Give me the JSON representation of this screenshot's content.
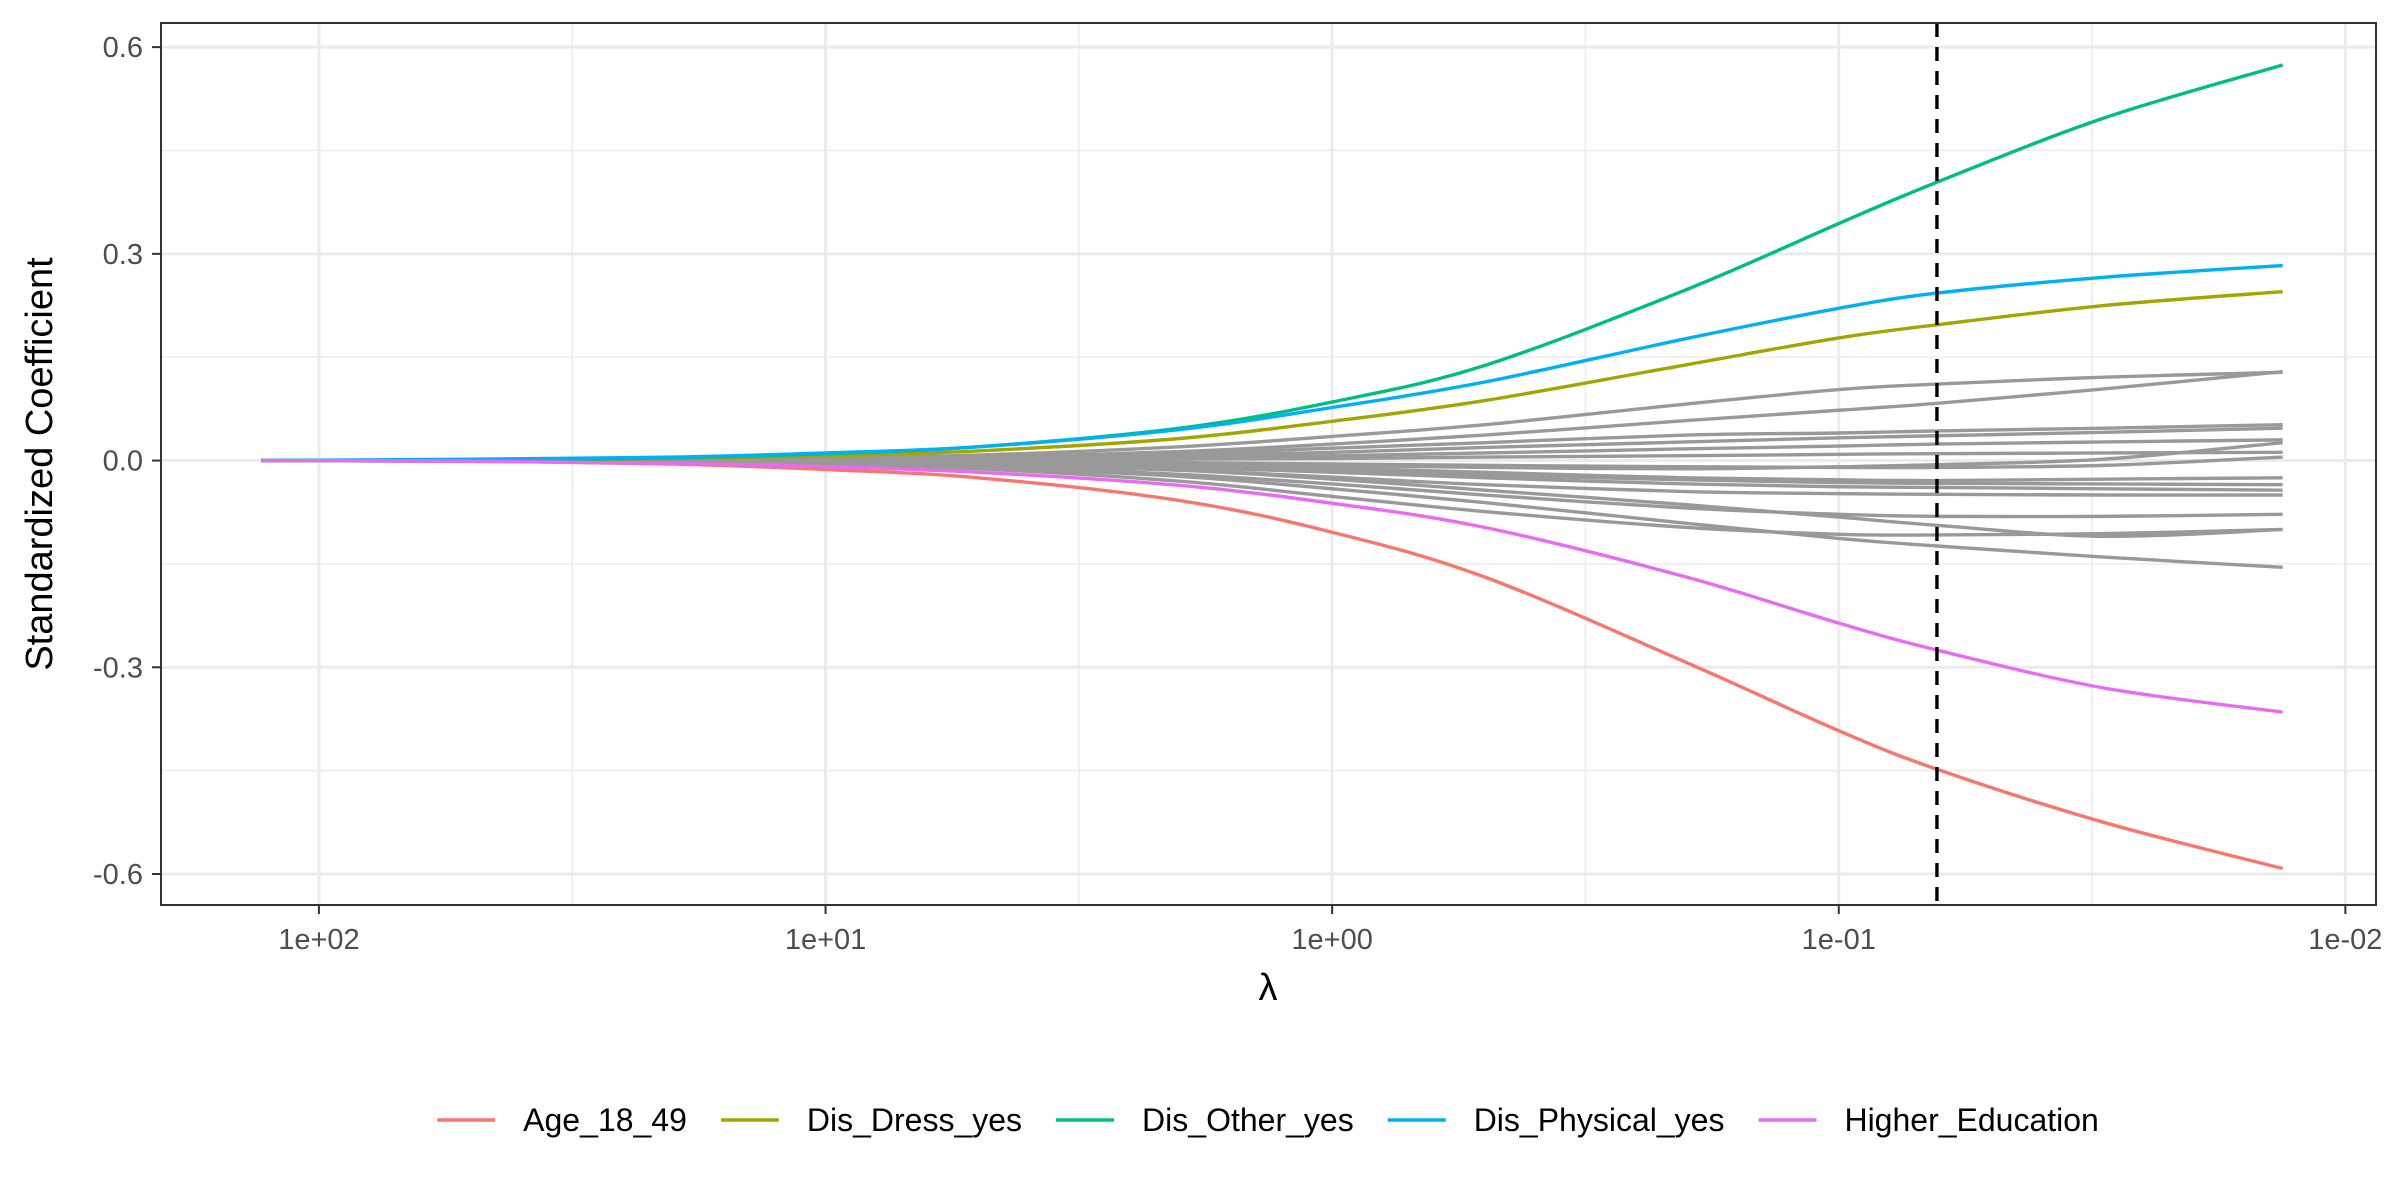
{
  "chart_data": {
    "type": "line",
    "xlabel": "λ",
    "ylabel": "Standardized Coefficient",
    "x_scale": "log10-reversed",
    "xlim": [
      205,
      0.0087
    ],
    "ylim": [
      -0.645,
      0.635
    ],
    "x_ticks": [
      {
        "value": 100,
        "label": "1e+02"
      },
      {
        "value": 10,
        "label": "1e+01"
      },
      {
        "value": 1,
        "label": "1e+00"
      },
      {
        "value": 0.1,
        "label": "1e-01"
      },
      {
        "value": 0.01,
        "label": "1e-02"
      }
    ],
    "y_ticks": [
      {
        "value": 0.6,
        "label": "0.6"
      },
      {
        "value": 0.3,
        "label": "0.3"
      },
      {
        "value": 0.0,
        "label": "0.0"
      },
      {
        "value": -0.3,
        "label": "-0.3"
      },
      {
        "value": -0.6,
        "label": "-0.6"
      }
    ],
    "grid": true,
    "legend_position": "bottom",
    "vline": {
      "x": 0.064,
      "style": "dashed"
    },
    "x": [
      130,
      50,
      20,
      10,
      5,
      2,
      1,
      0.5,
      0.2,
      0.1,
      0.064,
      0.03,
      0.0133
    ],
    "series": [
      {
        "name": "Age_18_49",
        "color": "#F8766D",
        "values": [
          0.0,
          -0.001,
          -0.005,
          -0.013,
          -0.025,
          -0.058,
          -0.104,
          -0.169,
          -0.293,
          -0.392,
          -0.448,
          -0.525,
          -0.592
        ]
      },
      {
        "name": "Dis_Dress_yes",
        "color": "#A3A500",
        "values": [
          0.0,
          0.0,
          0.003,
          0.007,
          0.014,
          0.032,
          0.057,
          0.087,
          0.139,
          0.178,
          0.197,
          0.225,
          0.245
        ]
      },
      {
        "name": "Dis_Other_yes",
        "color": "#00BF7D",
        "values": [
          0.0,
          0.0,
          0.004,
          0.01,
          0.02,
          0.047,
          0.085,
          0.138,
          0.248,
          0.344,
          0.404,
          0.497,
          0.574
        ]
      },
      {
        "name": "Dis_Physical_yes",
        "color": "#00B0F6",
        "values": [
          0.0,
          0.002,
          0.005,
          0.011,
          0.02,
          0.045,
          0.077,
          0.114,
          0.177,
          0.221,
          0.243,
          0.266,
          0.283
        ]
      },
      {
        "name": "Higher_Education",
        "color": "#E76BF3",
        "values": [
          0.0,
          -0.001,
          -0.004,
          -0.009,
          -0.017,
          -0.036,
          -0.062,
          -0.097,
          -0.169,
          -0.236,
          -0.275,
          -0.33,
          -0.365
        ]
      },
      {
        "color": "#999999",
        "values": [
          0.0,
          0.0,
          0.002,
          0.004,
          0.008,
          0.02,
          0.035,
          0.052,
          0.082,
          0.103,
          0.111,
          0.121,
          0.128
        ]
      },
      {
        "color": "#999999",
        "values": [
          0.0,
          0.0,
          0.001,
          0.003,
          0.005,
          0.013,
          0.024,
          0.037,
          0.058,
          0.073,
          0.083,
          0.104,
          0.129
        ]
      },
      {
        "color": "#999999",
        "values": [
          0.0,
          0.0,
          0.001,
          0.002,
          0.004,
          0.01,
          0.018,
          0.026,
          0.037,
          0.04,
          0.043,
          0.047,
          0.052
        ]
      },
      {
        "color": "#999999",
        "values": [
          0.0,
          0.0,
          0.001,
          0.002,
          0.003,
          0.007,
          0.012,
          0.019,
          0.027,
          0.033,
          0.036,
          0.041,
          0.047
        ]
      },
      {
        "color": "#999999",
        "values": [
          0.0,
          0.0,
          0.0,
          0.001,
          0.002,
          0.004,
          0.007,
          0.011,
          0.017,
          0.021,
          0.024,
          0.027,
          0.03
        ]
      },
      {
        "color": "#999999",
        "values": [
          0.0,
          0.0,
          0.0,
          0.0,
          0.001,
          0.002,
          0.003,
          0.005,
          0.007,
          0.009,
          0.01,
          0.011,
          0.012
        ]
      },
      {
        "color": "#999999",
        "values": [
          0.0,
          0.0,
          0.0,
          -0.001,
          -0.002,
          -0.004,
          -0.007,
          -0.01,
          -0.012,
          -0.009,
          -0.006,
          0.002,
          0.026
        ]
      },
      {
        "color": "#999999",
        "values": [
          0.0,
          0.0,
          0.0,
          -0.001,
          -0.001,
          -0.003,
          -0.005,
          -0.007,
          -0.009,
          -0.01,
          -0.01,
          -0.007,
          0.005
        ]
      },
      {
        "color": "#999999",
        "values": [
          0.0,
          0.0,
          -0.001,
          -0.001,
          -0.003,
          -0.007,
          -0.011,
          -0.017,
          -0.025,
          -0.028,
          -0.029,
          -0.027,
          -0.025
        ]
      },
      {
        "color": "#999999",
        "values": [
          0.0,
          0.0,
          -0.001,
          -0.002,
          -0.004,
          -0.009,
          -0.015,
          -0.021,
          -0.028,
          -0.032,
          -0.033,
          -0.034,
          -0.035
        ]
      },
      {
        "color": "#999999",
        "values": [
          0.0,
          0.0,
          -0.001,
          -0.002,
          -0.004,
          -0.01,
          -0.017,
          -0.025,
          -0.034,
          -0.038,
          -0.039,
          -0.041,
          -0.043
        ]
      },
      {
        "color": "#999999",
        "values": [
          0.0,
          -0.001,
          -0.002,
          -0.003,
          -0.006,
          -0.014,
          -0.024,
          -0.035,
          -0.045,
          -0.048,
          -0.049,
          -0.05,
          -0.05
        ]
      },
      {
        "color": "#999999",
        "values": [
          0.0,
          -0.001,
          -0.002,
          -0.004,
          -0.008,
          -0.02,
          -0.034,
          -0.05,
          -0.069,
          -0.078,
          -0.081,
          -0.081,
          -0.078
        ]
      },
      {
        "color": "#999999",
        "values": [
          0.0,
          -0.001,
          -0.003,
          -0.006,
          -0.012,
          -0.03,
          -0.052,
          -0.074,
          -0.097,
          -0.107,
          -0.108,
          -0.106,
          -0.1
        ]
      },
      {
        "color": "#999999",
        "values": [
          0.0,
          0.0,
          -0.001,
          -0.002,
          -0.005,
          -0.014,
          -0.027,
          -0.043,
          -0.064,
          -0.082,
          -0.094,
          -0.11,
          -0.1
        ]
      },
      {
        "color": "#999999",
        "values": [
          0.0,
          -0.001,
          -0.002,
          -0.005,
          -0.01,
          -0.023,
          -0.041,
          -0.061,
          -0.091,
          -0.113,
          -0.124,
          -0.14,
          -0.155
        ]
      }
    ]
  }
}
